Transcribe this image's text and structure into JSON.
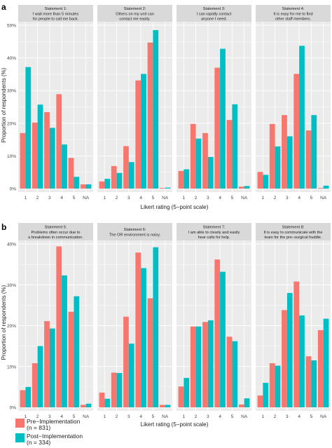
{
  "chart_data": [
    {
      "type": "bar",
      "panel_label": "a",
      "categories": [
        "1",
        "2",
        "3",
        "4",
        "5",
        "NA"
      ],
      "ylabel": "Proportion of respondents (%)",
      "xlabel": "Likert rating (5−point scale)",
      "ylim": [
        0,
        50
      ],
      "yticks": [
        "0%",
        "10%",
        "20%",
        "30%",
        "40%",
        "50%"
      ],
      "grid": true,
      "facets": [
        {
          "title_lines": [
            "Statement 1:",
            "I wait more than 5 minutes",
            "for people to call me back."
          ],
          "series": [
            {
              "values": [
                17.0,
                20.2,
                23.4,
                28.9,
                9.4,
                1.3
              ]
            },
            {
              "values": [
                37.2,
                25.7,
                18.6,
                13.5,
                3.6,
                1.3
              ]
            }
          ]
        },
        {
          "title_lines": [
            "Statement 2:",
            "Others on my unit can",
            "contact me easily."
          ],
          "series": [
            {
              "values": [
                2.2,
                6.9,
                13.0,
                33.1,
                44.7,
                0.2
              ]
            },
            {
              "values": [
                3.0,
                4.8,
                8.1,
                35.1,
                48.5,
                0.3
              ]
            }
          ]
        },
        {
          "title_lines": [
            "Statement 3:",
            "I can rapidly contact",
            "anyone I need."
          ],
          "series": [
            {
              "values": [
                5.4,
                19.8,
                17.0,
                37.0,
                21.0,
                0.6
              ]
            },
            {
              "values": [
                5.9,
                15.3,
                9.7,
                42.8,
                25.8,
                0.8
              ]
            }
          ]
        },
        {
          "title_lines": [
            "Statement 4:",
            "It is easy for me to find",
            "other staff members."
          ],
          "series": [
            {
              "values": [
                5.1,
                19.8,
                22.5,
                35.1,
                17.8,
                0.2
              ]
            },
            {
              "values": [
                4.2,
                12.9,
                16.0,
                43.7,
                22.5,
                0.9
              ]
            }
          ]
        }
      ]
    },
    {
      "type": "bar",
      "panel_label": "b",
      "categories": [
        "1",
        "2",
        "3",
        "4",
        "5",
        "NA"
      ],
      "ylabel": "Proportion of respondents (%)",
      "xlabel": "Likert rating (5−point scale)",
      "ylim": [
        0,
        40
      ],
      "yticks": [
        "0%",
        "10%",
        "20%",
        "30%",
        "40%"
      ],
      "grid": true,
      "facets": [
        {
          "title_lines": [
            "Statement 5:",
            "Problems often occur due to",
            "a breakdown in communication."
          ],
          "series": [
            {
              "values": [
                4.2,
                10.8,
                21.1,
                39.4,
                23.4,
                0.6
              ]
            },
            {
              "values": [
                5.0,
                15.0,
                19.3,
                32.3,
                27.2,
                0.9
              ]
            }
          ]
        },
        {
          "title_lines": [
            "Statement 6:",
            "The OR environment is noisy."
          ],
          "series": [
            {
              "values": [
                3.6,
                8.5,
                22.2,
                37.9,
                26.7,
                0.6
              ]
            },
            {
              "values": [
                2.1,
                8.4,
                15.6,
                34.1,
                39.2,
                0.6
              ]
            }
          ]
        },
        {
          "title_lines": [
            "Statement 7:",
            "I am able to clearly and easily",
            "hear calls for help."
          ],
          "series": [
            {
              "values": [
                5.1,
                19.8,
                20.9,
                36.2,
                17.3,
                0.7
              ]
            },
            {
              "values": [
                7.2,
                19.8,
                21.3,
                33.2,
                16.2,
                2.2
              ]
            }
          ]
        },
        {
          "title_lines": [
            "Statement 8:",
            "It is easy to communicate with the",
            "team for the pre−surgical huddle."
          ],
          "series": [
            {
              "values": [
                2.9,
                10.8,
                23.8,
                30.8,
                12.5,
                18.9
              ]
            },
            {
              "values": [
                6.0,
                10.2,
                28.0,
                22.5,
                11.5,
                21.7
              ]
            }
          ]
        }
      ]
    }
  ],
  "legend": [
    {
      "label_lines": [
        "Pre−Implementation",
        "(n = 831)"
      ],
      "color": "#F8766D"
    },
    {
      "label_lines": [
        "Post−Implementation",
        "(n = 334)"
      ],
      "color": "#00BFC4"
    }
  ],
  "colors": {
    "panel_bg": "#EBEBEB",
    "grid": "#ffffff",
    "strip_bg": "#D9D9D9"
  }
}
